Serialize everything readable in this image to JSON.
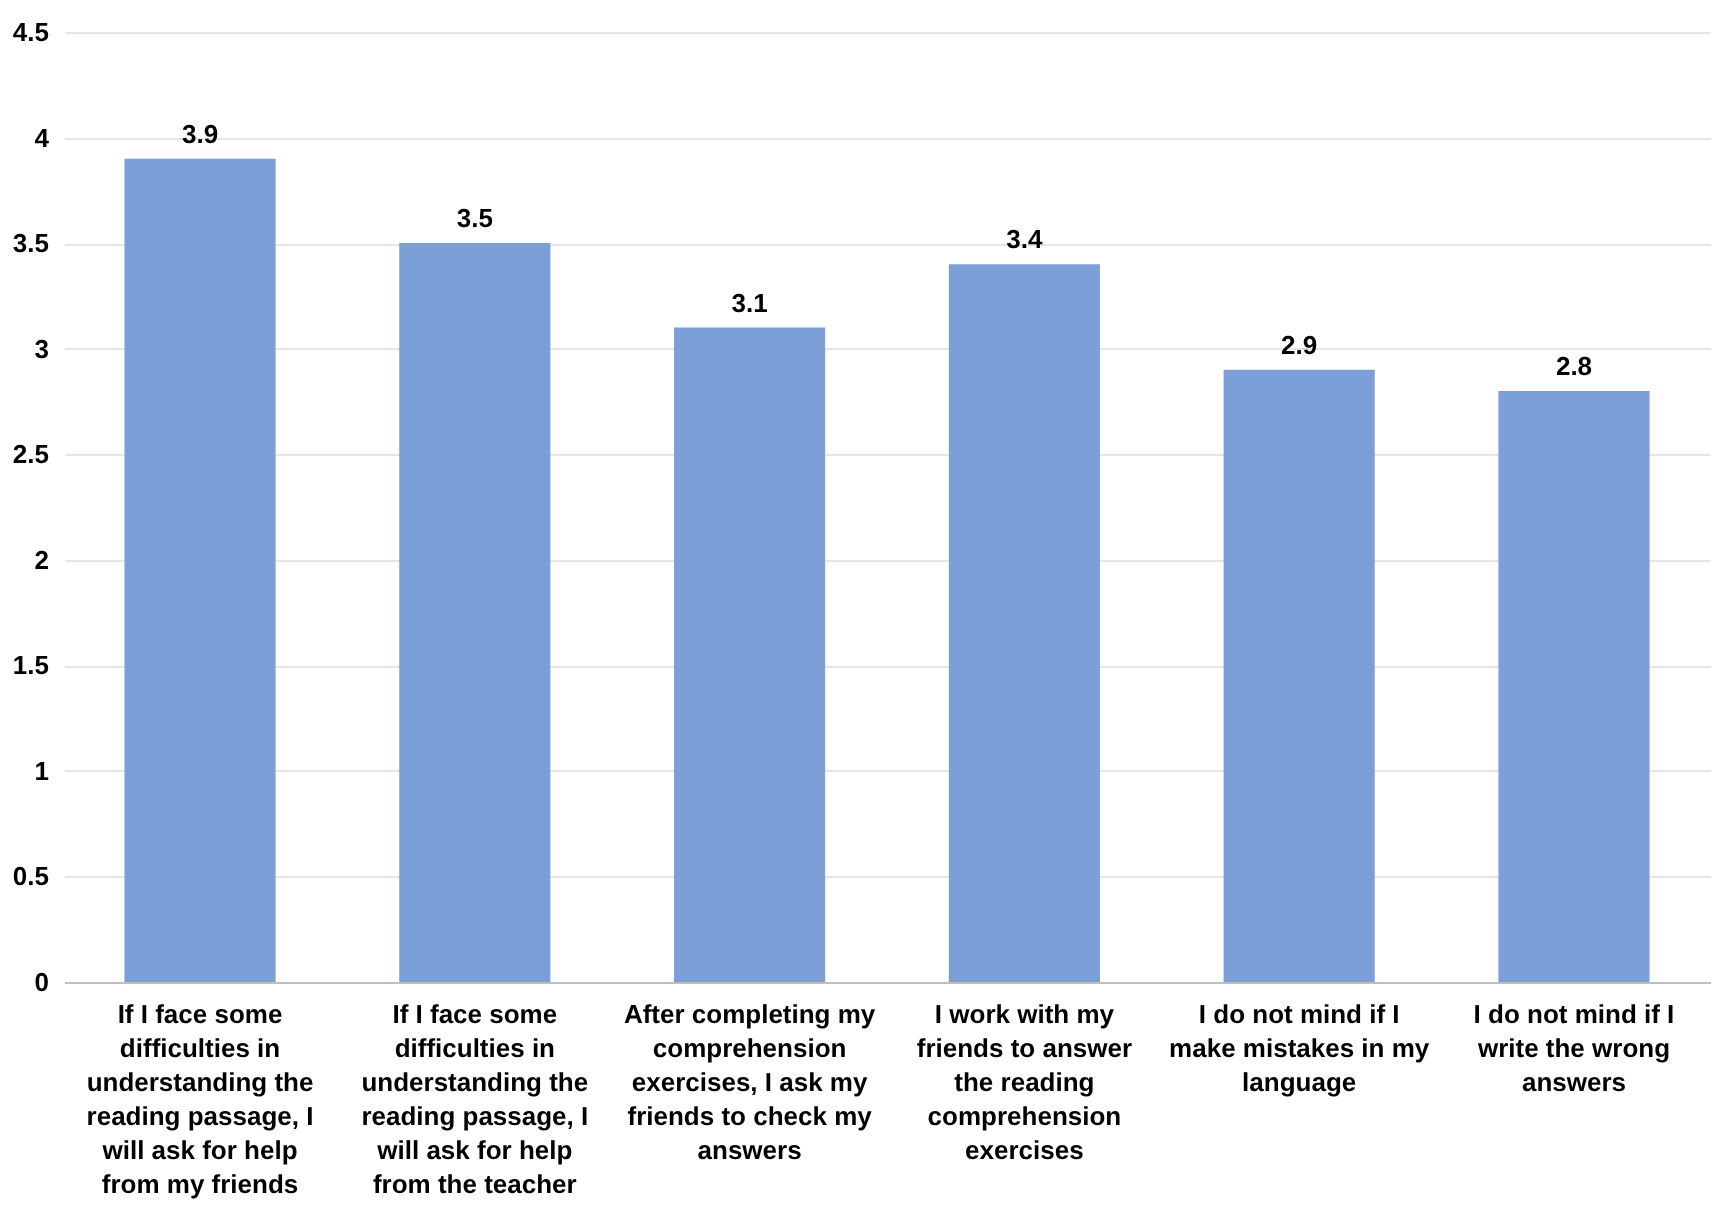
{
  "chart_data": {
    "type": "bar",
    "categories": [
      "If I face some difficulties in understanding the reading passage, I will ask for help from my friends",
      "If I face some difficulties in understanding the reading passage, I will ask for help from the teacher",
      "After completing my comprehension exercises, I ask my friends to check my answers",
      "I work with my friends to answer the reading comprehension exercises",
      "I do not mind if I make mistakes in my language",
      "I do not mind if I write the wrong answers"
    ],
    "values": [
      3.9,
      3.5,
      3.1,
      3.4,
      2.9,
      2.8
    ],
    "color": "#7b9fd6",
    "ylim": [
      0,
      4.5
    ],
    "yticks": [
      0,
      0.5,
      1,
      1.5,
      2,
      2.5,
      3,
      3.5,
      4,
      4.5
    ],
    "grid": "y",
    "data_labels": true
  }
}
